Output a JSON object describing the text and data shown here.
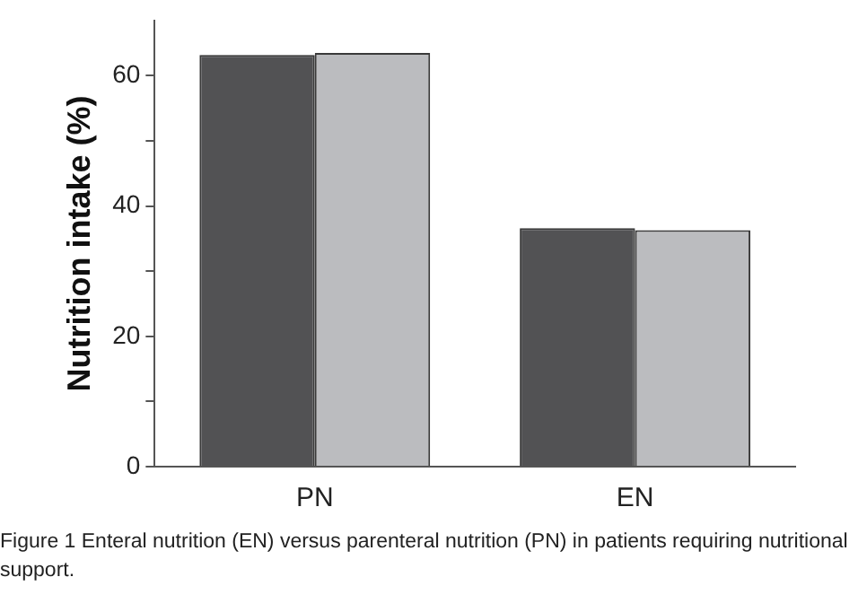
{
  "chart_data": {
    "type": "bar",
    "ylabel": "Nutrition intake (%)",
    "categories": [
      "PN",
      "EN"
    ],
    "series": [
      {
        "color": "#525254",
        "values": [
          63.2,
          36.6
        ]
      },
      {
        "color": "#bbbcbf",
        "values": [
          63.5,
          36.3
        ]
      }
    ],
    "ylim": [
      0,
      68.5
    ],
    "yticks": [
      0,
      {
        "value": 10,
        "label": null
      },
      20,
      {
        "value": 30,
        "label": null
      },
      40,
      {
        "value": 50,
        "label": null
      },
      60
    ],
    "grid": false,
    "legend": false,
    "annotations": [
      "Figure 1 Enteral nutrition (EN) versus parenteral nutrition (PN) in patients requiring nutritional support."
    ]
  }
}
